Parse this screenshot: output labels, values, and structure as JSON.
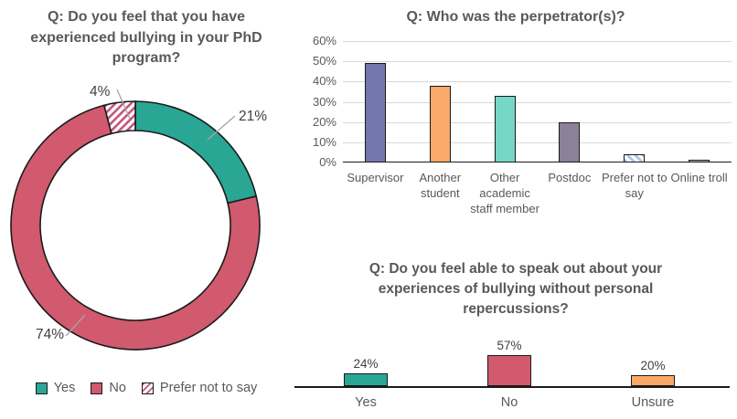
{
  "chart_data": [
    {
      "id": "bullying-donut",
      "type": "pie",
      "subtype": "doughnut",
      "title": "Q: Do you feel that you have experienced bullying in your PhD program?",
      "segments": [
        {
          "label": "Yes",
          "value": 21,
          "data_label": "21%",
          "color": "#2aa695",
          "pattern": "solid"
        },
        {
          "label": "No",
          "value": 74,
          "data_label": "74%",
          "color": "#d15a6e",
          "pattern": "solid"
        },
        {
          "label": "Prefer not to say",
          "value": 4,
          "data_label": "4%",
          "color": "#c4557d",
          "pattern": "diagonal-stripes-on-white"
        }
      ],
      "legend": [
        {
          "label": "Yes",
          "color": "#2aa695",
          "pattern": "solid"
        },
        {
          "label": "No",
          "color": "#d15a6e",
          "pattern": "solid"
        },
        {
          "label": "Prefer not to say",
          "color": "#c4557d",
          "pattern": "diagonal-stripes-on-white"
        }
      ],
      "legend_position": "bottom",
      "outline_color": "#1a1a1a"
    },
    {
      "id": "perpetrator-bars",
      "type": "bar",
      "title": "Q: Who was the perpetrator(s)?",
      "categories": [
        "Supervisor",
        "Another student",
        "Other academic staff member",
        "Postdoc",
        "Prefer not to say",
        "Online troll"
      ],
      "values": [
        49,
        38,
        33,
        20,
        4,
        1
      ],
      "bar_colors": [
        "#7477ae",
        "#f9a969",
        "#76d7c6",
        "#8d8099",
        "#a9c7e3",
        "#b3b3b3"
      ],
      "bar_patterns": [
        "solid",
        "solid",
        "solid",
        "solid",
        "diagonal-stripes-on-white",
        "solid"
      ],
      "xlabel": "",
      "ylabel": "",
      "ylim": [
        0,
        60
      ],
      "y_ticks": [
        "0%",
        "10%",
        "20%",
        "30%",
        "40%",
        "50%",
        "60%"
      ],
      "grid": true,
      "legend_position": "none",
      "outline_color": "#1a1a1a"
    },
    {
      "id": "speak-out-bars",
      "type": "bar",
      "title": "Q: Do you feel able to speak out about your experiences of bullying without personal repercussions?",
      "categories": [
        "Yes",
        "No",
        "Unsure"
      ],
      "values": [
        24,
        57,
        20
      ],
      "data_labels": [
        "24%",
        "57%",
        "20%"
      ],
      "bar_colors": [
        "#2aa695",
        "#d15a6e",
        "#f9a969"
      ],
      "bar_patterns": [
        "solid",
        "solid",
        "solid"
      ],
      "xlabel": "",
      "ylabel": "",
      "grid": false,
      "legend_position": "none",
      "outline_color": "#1a1a1a"
    }
  ]
}
